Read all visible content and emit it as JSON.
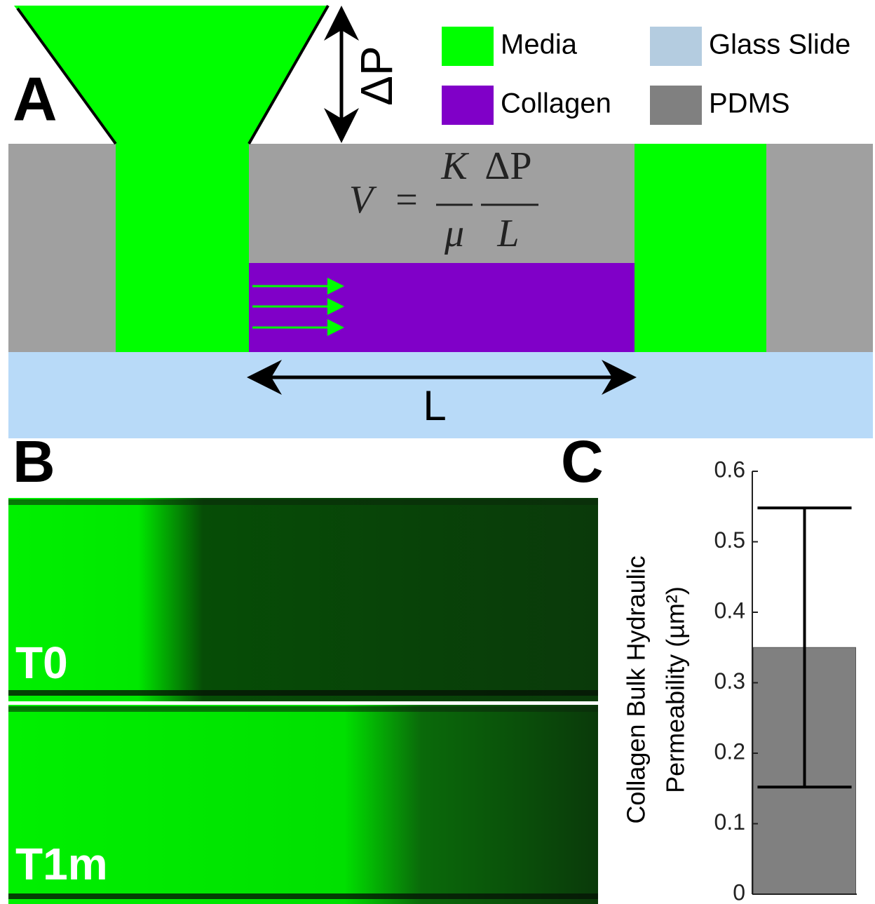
{
  "panel_a": {
    "label": "A",
    "pressure_label": "ΔP",
    "length_label": "L",
    "legend": [
      {
        "name": "Media",
        "color": "#00ff00"
      },
      {
        "name": "Collagen",
        "color": "#8000c8"
      },
      {
        "name": "Glass Slide",
        "color": "#b4cce0"
      },
      {
        "name": "PDMS",
        "color": "#808080"
      }
    ],
    "equation": {
      "lhs": "V",
      "eq": "=",
      "num1": "K",
      "den1": "μ",
      "num2": "ΔP",
      "den2": "L"
    }
  },
  "panel_b": {
    "label": "B",
    "images": [
      "T0",
      "T1m"
    ]
  },
  "panel_c": {
    "label": "C"
  },
  "chart_data": {
    "type": "bar",
    "y_label": [
      "Collagen Bulk Hydraulic",
      "Permeability (µm²)"
    ],
    "categories": [
      null
    ],
    "values": [
      0.35
    ],
    "errors": [
      0.198
    ],
    "color": "#808080",
    "ylim": [
      0,
      0.6
    ],
    "yticks": [
      0,
      0.1,
      0.2,
      0.3,
      0.4,
      0.5,
      0.6
    ]
  }
}
